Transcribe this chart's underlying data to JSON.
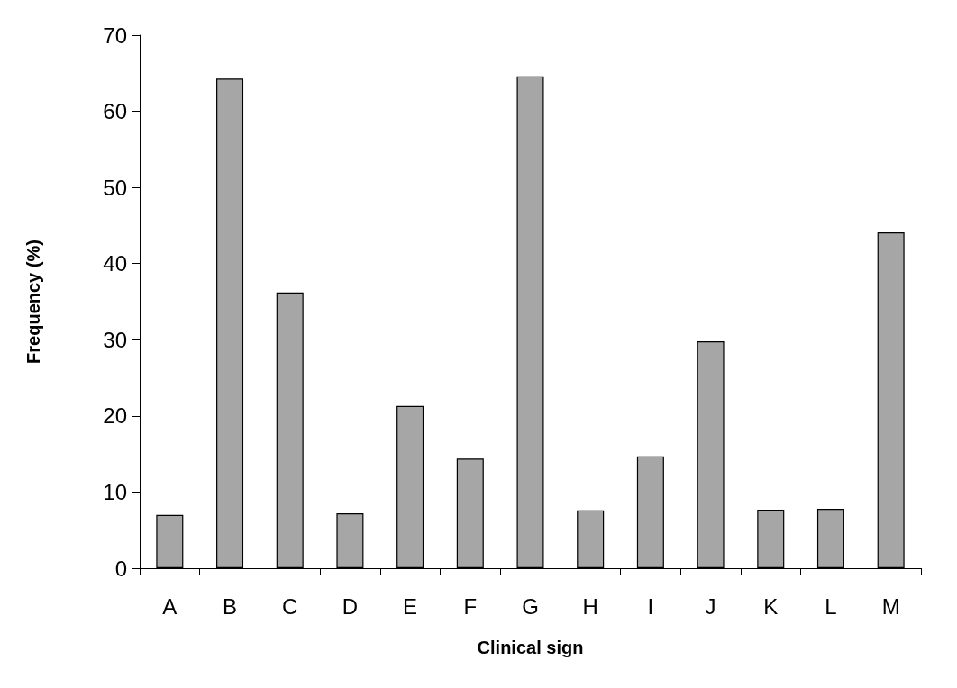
{
  "chart_data": {
    "type": "bar",
    "xlabel": "Clinical sign",
    "ylabel": "Frequency (%)",
    "categories": [
      "A",
      "B",
      "C",
      "D",
      "E",
      "F",
      "G",
      "H",
      "I",
      "J",
      "K",
      "L",
      "M"
    ],
    "values": [
      7,
      64.3,
      36.2,
      7.2,
      21.3,
      14.4,
      64.6,
      7.6,
      14.7,
      29.8,
      7.7,
      7.8,
      44.1
    ],
    "color": "#a6a6a6",
    "ylim": [
      0,
      70
    ],
    "yticks": [
      0,
      10,
      20,
      30,
      40,
      50,
      60,
      70
    ],
    "grid": false
  }
}
